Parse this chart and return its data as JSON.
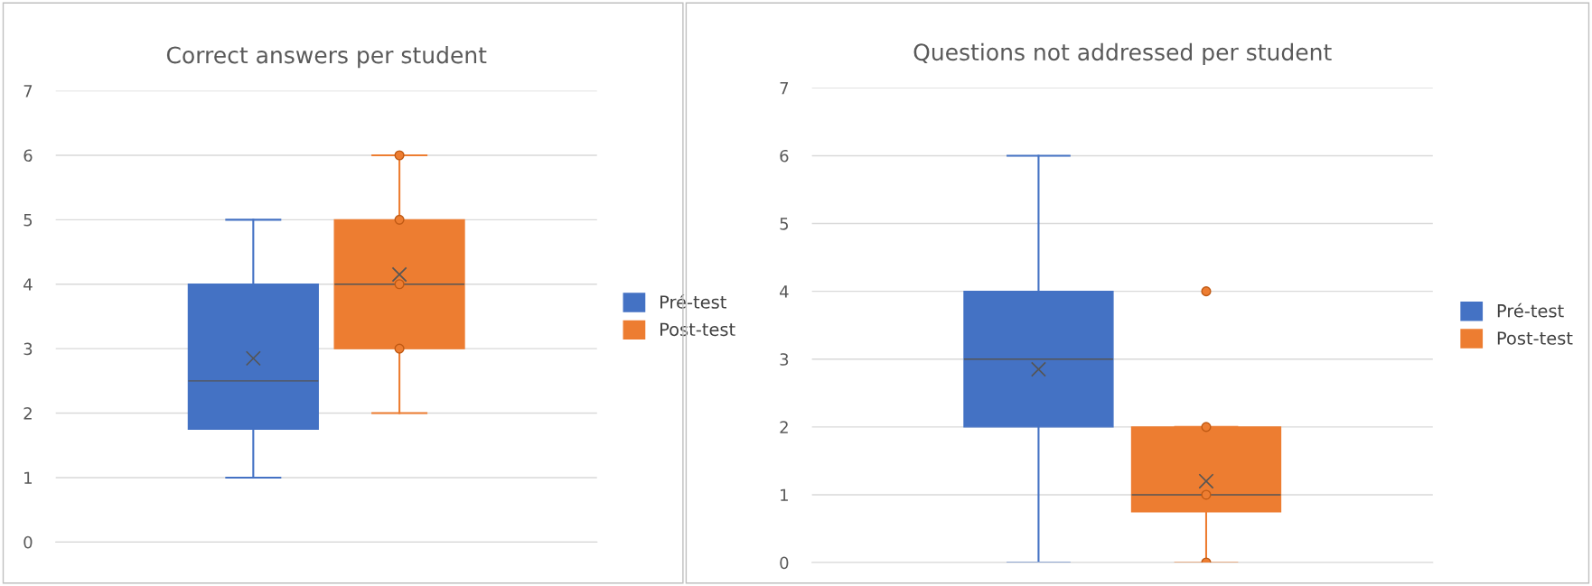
{
  "chart_data": [
    {
      "type": "box",
      "title": "Correct answers per student",
      "categories": [
        null
      ],
      "ylim": [
        0,
        7
      ],
      "yticks": [
        0,
        1,
        2,
        3,
        4,
        5,
        6,
        7
      ],
      "grid": "y",
      "legend": "right",
      "tick_labels": "y",
      "series": [
        {
          "name": "Pré-test",
          "color": "#4472c4",
          "boxes": [
            {
              "low": 1,
              "q1": 1.75,
              "median": 2.5,
              "q3": 4,
              "high": 5,
              "mean": 2.85
            }
          ]
        },
        {
          "name": "Post-test",
          "color": "#ed7d31",
          "boxes": [
            {
              "low": 2,
              "q1": 3,
              "median": 4,
              "q3": 5,
              "high": 6,
              "mean": 4.15,
              "outliers": [
                3,
                4,
                5,
                6
              ]
            }
          ]
        }
      ]
    },
    {
      "type": "box",
      "title": "Questions not addressed per student",
      "categories": [
        null
      ],
      "ylim": [
        0,
        7
      ],
      "yticks": [
        0,
        1,
        2,
        3,
        4,
        5,
        6,
        7
      ],
      "grid": "y",
      "legend": "right",
      "tick_labels": "y",
      "series": [
        {
          "name": "Pré-test",
          "color": "#4472c4",
          "boxes": [
            {
              "low": 0,
              "q1": 2,
              "median": 3,
              "q3": 4,
              "high": 6,
              "mean": 2.85
            }
          ]
        },
        {
          "name": "Post-test",
          "color": "#ed7d31",
          "boxes": [
            {
              "low": 0,
              "q1": 0.75,
              "median": 1,
              "q3": 2,
              "high": 2,
              "mean": 1.2,
              "outliers": [
                0,
                1,
                2,
                4
              ]
            }
          ]
        }
      ]
    }
  ]
}
